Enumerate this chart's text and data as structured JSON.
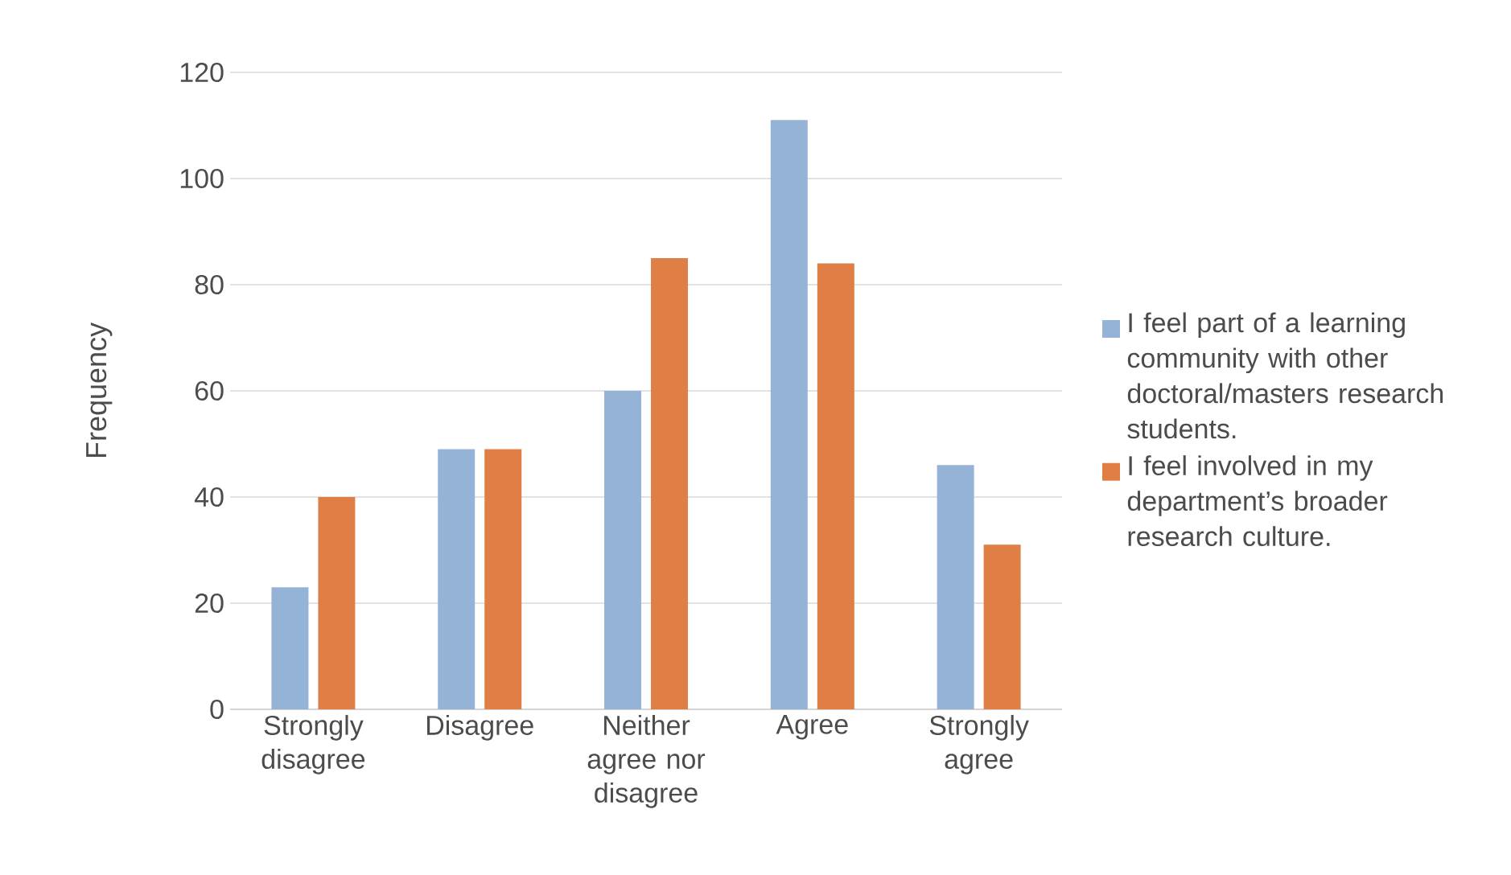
{
  "chart_data": {
    "type": "bar",
    "ylabel": "Frequency",
    "categories": [
      "Strongly disagree",
      "Disagree",
      "Neither agree nor disagree",
      "Agree",
      "Strongly agree"
    ],
    "series": [
      {
        "name": "I feel part of a learning community with other doctoral/masters research students.",
        "color": "#95b3d7",
        "values": [
          23,
          49,
          60,
          111,
          46
        ]
      },
      {
        "name": "I feel involved in my department’s broader research culture.",
        "color": "#e07f45",
        "values": [
          40,
          49,
          85,
          84,
          31
        ]
      }
    ],
    "ylim": [
      0,
      120
    ],
    "yticks": [
      0,
      20,
      40,
      60,
      80,
      100,
      120
    ],
    "grid": "y",
    "legend": "right"
  }
}
